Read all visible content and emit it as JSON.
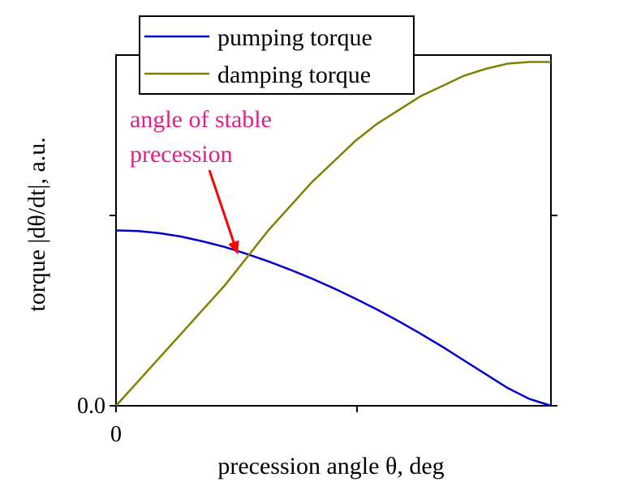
{
  "chart_data": {
    "type": "line",
    "title": "",
    "xlabel": "precession angle θ, deg",
    "ylabel": "torque  |dθ/dt|, a.u.",
    "xlim": [
      0,
      1
    ],
    "ylim": [
      0,
      1.02
    ],
    "x_tick_labels": [
      "0"
    ],
    "y_tick_labels": [
      "0.0"
    ],
    "legend": [
      "pumping torque",
      "damping torque"
    ],
    "legend_position": "top-left",
    "grid": false,
    "series": [
      {
        "name": "pumping torque",
        "color": "#0000cc",
        "x": [
          0,
          0.05,
          0.1,
          0.15,
          0.2,
          0.25,
          0.3,
          0.35,
          0.4,
          0.45,
          0.5,
          0.55,
          0.6,
          0.65,
          0.7,
          0.75,
          0.8,
          0.85,
          0.9,
          0.95,
          1.0
        ],
        "y": [
          0.51,
          0.508,
          0.502,
          0.492,
          0.478,
          0.462,
          0.442,
          0.42,
          0.396,
          0.37,
          0.342,
          0.312,
          0.28,
          0.246,
          0.21,
          0.172,
          0.132,
          0.092,
          0.052,
          0.02,
          0.0
        ]
      },
      {
        "name": "damping torque",
        "color": "#808000",
        "x": [
          0,
          0.05,
          0.1,
          0.15,
          0.2,
          0.25,
          0.3,
          0.35,
          0.4,
          0.45,
          0.5,
          0.55,
          0.6,
          0.65,
          0.7,
          0.75,
          0.8,
          0.85,
          0.9,
          0.95,
          1.0
        ],
        "y": [
          0.0,
          0.07,
          0.14,
          0.21,
          0.28,
          0.35,
          0.43,
          0.51,
          0.58,
          0.65,
          0.71,
          0.77,
          0.82,
          0.86,
          0.9,
          0.93,
          0.96,
          0.98,
          0.995,
          1.0,
          1.0
        ]
      }
    ],
    "annotation": {
      "lines": [
        "angle of stable",
        "precession"
      ],
      "color": "#e0208a",
      "arrow_color": "#ff0000",
      "target": {
        "x": 0.28,
        "y": 0.44
      }
    }
  }
}
